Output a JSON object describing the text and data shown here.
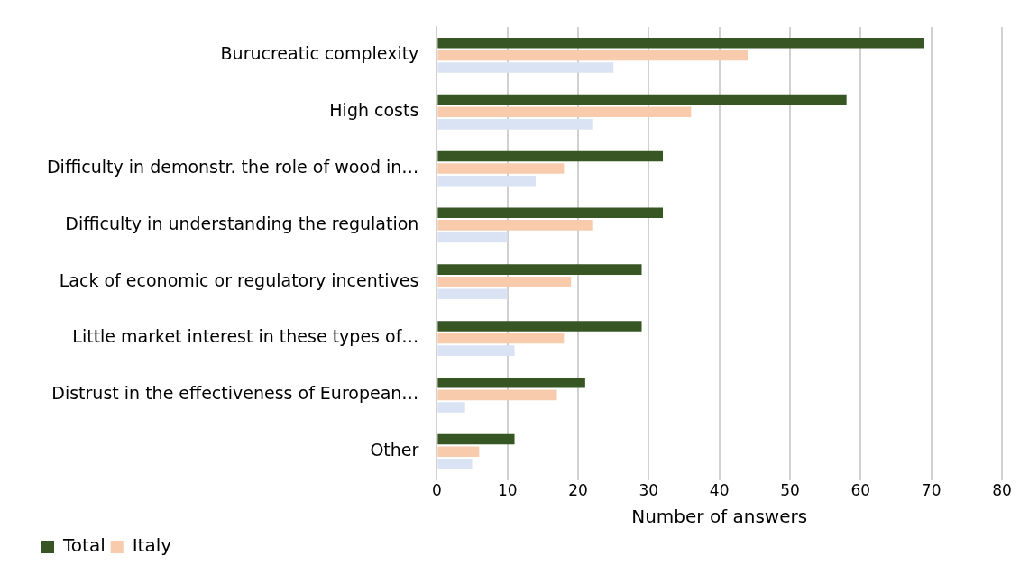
{
  "chart_data": {
    "type": "bar",
    "orientation": "horizontal",
    "xlabel": "Number of answers",
    "categories": [
      "Burucreatic complexity",
      "High costs",
      "Difficulty in demonstr. the role of wood in…",
      "Difficulty in understanding the regulation",
      "Lack of economic or regulatory incentives",
      "Little market interest in these types of…",
      "Distrust in the effectiveness of European…",
      "Other"
    ],
    "series": [
      {
        "name": "Total",
        "color": "#375623",
        "values": [
          69,
          58,
          32,
          32,
          29,
          29,
          21,
          11
        ]
      },
      {
        "name": "Italy",
        "color": "#f8cbad",
        "values": [
          44,
          36,
          18,
          22,
          19,
          18,
          17,
          6
        ]
      },
      {
        "color": "#dae3f3",
        "values": [
          25,
          22,
          14,
          10,
          10,
          11,
          4,
          5
        ]
      }
    ],
    "xlim": [
      0,
      80
    ],
    "xticks": [
      0,
      10,
      20,
      30,
      40,
      50,
      60,
      70,
      80
    ],
    "grid": "x",
    "legend": "bottom"
  }
}
